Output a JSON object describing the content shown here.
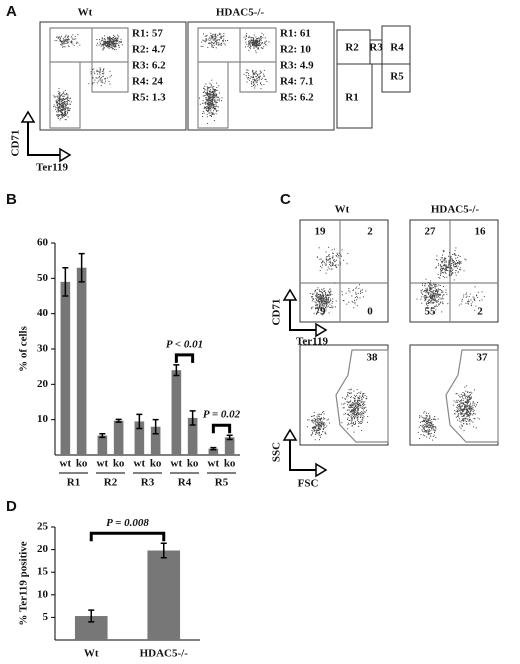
{
  "panels": {
    "A": {
      "label": "A",
      "plots": [
        {
          "title": "Wt",
          "stats": [
            "R1: 57",
            "R2: 4.7",
            "R3: 6.2",
            "R4: 24",
            "R5: 1.3"
          ]
        },
        {
          "title": "HDAC5-/-",
          "stats": [
            "R1: 61",
            "R2: 10",
            "R3: 4.9",
            "R4: 7.1",
            "R5: 6.2"
          ]
        }
      ],
      "y_axis": "CD71",
      "x_axis": "Ter119",
      "gates": [
        "R2",
        "R3",
        "R4",
        "R5",
        "R1"
      ]
    },
    "B": {
      "label": "B"
    },
    "C": {
      "label": "C",
      "plots": [
        {
          "title": "Wt",
          "quadrants": [
            "19",
            "2",
            "79",
            "0"
          ],
          "gate": "38"
        },
        {
          "title": "HDAC5-/-",
          "quadrants": [
            "27",
            "16",
            "55",
            "2"
          ],
          "gate": "37"
        }
      ],
      "top_y_axis": "CD71",
      "top_x_axis": "Ter119",
      "bottom_y_axis": "SSC",
      "bottom_x_axis": "FSC"
    },
    "D": {
      "label": "D"
    }
  },
  "chart_data": [
    {
      "type": "bar",
      "y_label": "% of cells",
      "categories": [
        "wt",
        "ko",
        "wt",
        "ko",
        "wt",
        "ko",
        "wt",
        "ko",
        "wt",
        "ko"
      ],
      "groups": [
        "R1",
        "R2",
        "R3",
        "R4",
        "R5"
      ],
      "values": [
        49,
        53,
        5.5,
        9.7,
        9.5,
        8,
        24,
        10.5,
        1.8,
        5
      ],
      "errors": [
        4,
        4,
        0.5,
        0.4,
        2,
        2,
        1.5,
        2,
        0.3,
        0.6
      ],
      "color": "#777777",
      "ylim": [
        0,
        60
      ],
      "yticks": [
        10,
        20,
        30,
        40,
        50,
        60
      ],
      "annotations": [
        "P < 0.01",
        "P = 0.02"
      ]
    },
    {
      "type": "bar",
      "y_label": "% Ter119 positive",
      "categories": [
        "Wt",
        "HDAC5-/-"
      ],
      "values": [
        5.3,
        19.8
      ],
      "errors": [
        1.3,
        1.6
      ],
      "color": "#777777",
      "ylim": [
        0,
        25
      ],
      "yticks": [
        5,
        10,
        15,
        20,
        25
      ],
      "annotations": [
        "P = 0.008"
      ]
    }
  ]
}
